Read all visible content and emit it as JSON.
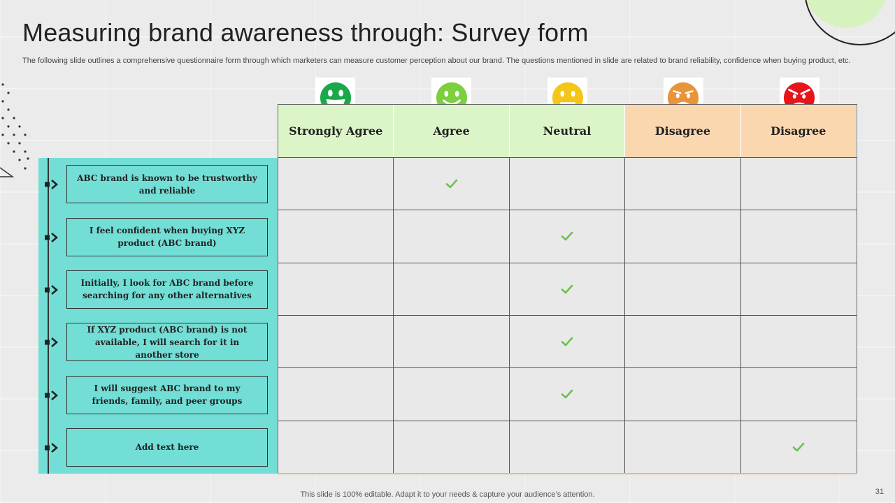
{
  "page": {
    "title": "Measuring brand awareness through: Survey form",
    "subtitle": "The following slide outlines a comprehensive questionnaire form through which marketers can measure customer perception about our brand. The questions mentioned in slide are related to brand reliability, confidence when buying product, etc.",
    "footer": "This slide is 100% editable. Adapt it to your needs & capture your audience’s attention.",
    "page_number": "31"
  },
  "columns": [
    {
      "label": "Strongly Agree",
      "icon": "very-happy-face-icon",
      "icon_color": "#1aa84a",
      "header_color": "#dcf5c8"
    },
    {
      "label": "Agree",
      "icon": "smiling-face-icon",
      "icon_color": "#7ccf3e",
      "header_color": "#dcf5c8"
    },
    {
      "label": "Neutral",
      "icon": "neutral-face-icon",
      "icon_color": "#f5c518",
      "header_color": "#dcf5c8"
    },
    {
      "label": "Disagree",
      "icon": "frowning-face-icon",
      "icon_color": "#e8943a",
      "header_color": "#fbd7b0"
    },
    {
      "label": "Disagree",
      "icon": "angry-face-icon",
      "icon_color": "#e8141c",
      "header_color": "#fbd7b0"
    }
  ],
  "questions": [
    {
      "text": "ABC brand is known to be trustworthy and reliable",
      "answer": 1
    },
    {
      "text": "I feel confident when buying XYZ product (ABC brand)",
      "answer": 2
    },
    {
      "text": "Initially, I look for ABC brand before searching for any other alternatives",
      "answer": 2
    },
    {
      "text": "If XYZ product (ABC brand) is not available, I will search for it in another store",
      "answer": 2
    },
    {
      "text": "I will suggest ABC brand to my friends, family, and peer groups",
      "answer": 2
    },
    {
      "text": "Add text here",
      "answer": 4
    }
  ],
  "colors": {
    "panel": "#73ded6",
    "check": "#6cc24a",
    "bottom_green": "#9fdc7a",
    "bottom_orange": "#f4b27a"
  }
}
